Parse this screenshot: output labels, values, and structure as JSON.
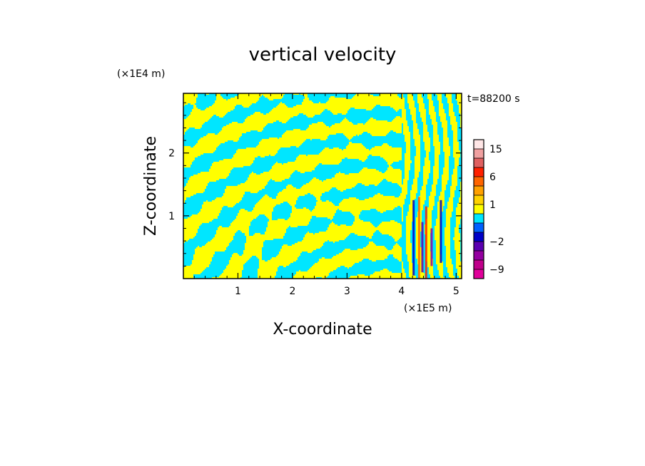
{
  "chart_data": {
    "type": "heatmap",
    "title": "vertical velocity",
    "xlabel": "X-coordinate",
    "ylabel": "Z-coordinate",
    "x_unit": "(×1E5 m)",
    "y_unit": "(×1E4 m)",
    "time_label": "t=88200 s",
    "x_ticks": [
      1,
      2,
      3,
      4,
      5
    ],
    "y_ticks": [
      1,
      2
    ],
    "xlim": [
      0,
      5.1
    ],
    "ylim": [
      0,
      2.95
    ],
    "colorbar": {
      "tick_labels": [
        "15",
        "6",
        "1",
        "−2",
        "−9"
      ],
      "tick_values": [
        15,
        6,
        1,
        -2,
        -9
      ],
      "levels": [
        -12,
        -9,
        -6,
        -4,
        -2,
        -1,
        -0.5,
        0.5,
        1,
        2,
        4,
        6,
        9,
        12,
        15,
        18
      ],
      "colors": [
        "#e0009a",
        "#c0008a",
        "#9400a0",
        "#5a00b0",
        "#0000c8",
        "#0060ff",
        "#00e6ff",
        "#ffff00",
        "#ffd200",
        "#ffa000",
        "#ff6400",
        "#ff2000",
        "#e06060",
        "#f0a0a0",
        "#ffe6e6"
      ]
    },
    "field_description": "wave pattern of alternating cyan (negative) and yellow (positive) bands with strong convective cells near x=4.2-4.8"
  },
  "colors": {
    "positive": "#ffff00",
    "negative": "#00e6ff",
    "frame": "#000000"
  }
}
